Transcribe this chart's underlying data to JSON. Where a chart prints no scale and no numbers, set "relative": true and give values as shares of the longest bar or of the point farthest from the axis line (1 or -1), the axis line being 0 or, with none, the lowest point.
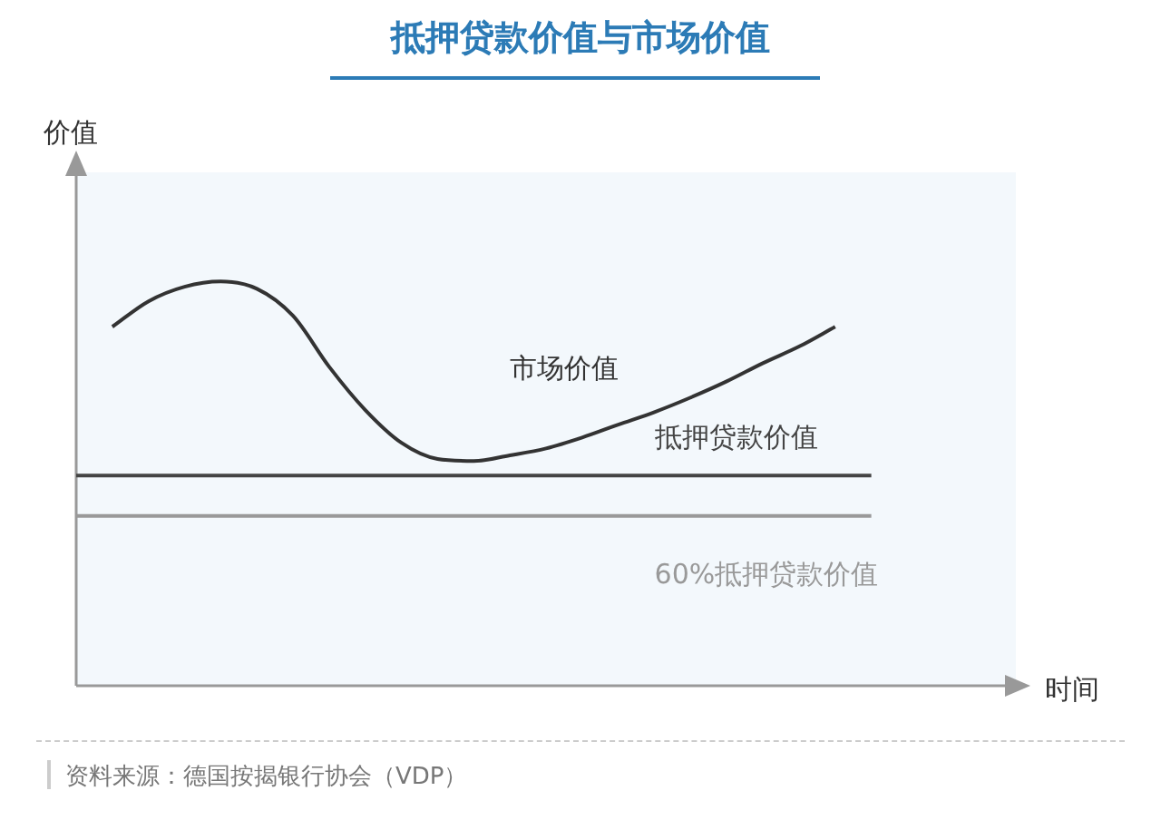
{
  "chart_data": {
    "type": "line",
    "title": "抵押贷款价值与市场价值",
    "xlabel": "时间",
    "ylabel": "价值",
    "relative": true,
    "legend": false,
    "marker": "none",
    "categories": [
      null,
      null,
      null,
      null,
      null,
      null,
      null,
      null,
      null,
      null,
      null,
      null,
      null,
      null,
      null,
      null,
      null,
      null,
      null,
      null,
      null,
      null,
      null,
      null,
      null,
      null,
      null
    ],
    "series": [
      {
        "name": "市场价值",
        "color": "#333333",
        "values": [
          null,
          0.888,
          0.951,
          0.987,
          1,
          0.982,
          0.915,
          0.789,
          0.682,
          0.601,
          0.561,
          0.556,
          0.57,
          0.587,
          0.614,
          0.646,
          0.677,
          0.713,
          0.753,
          0.798,
          0.839,
          0.888,
          null,
          null,
          null,
          null,
          null
        ]
      },
      {
        "name": "抵押贷款价值",
        "color": "#444444",
        "values": [
          0.52,
          0.52,
          0.52,
          0.52,
          0.52,
          0.52,
          0.52,
          0.52,
          0.52,
          0.52,
          0.52,
          0.52,
          0.52,
          0.52,
          0.52,
          0.52,
          0.52,
          0.52,
          0.52,
          0.52,
          0.52,
          0.52,
          0.52,
          null,
          null,
          null,
          null
        ]
      },
      {
        "name": "60%抵押贷款价值",
        "color": "#999999",
        "values": [
          0.42,
          0.42,
          0.42,
          0.42,
          0.42,
          0.42,
          0.42,
          0.42,
          0.42,
          0.42,
          0.42,
          0.42,
          0.42,
          0.42,
          0.42,
          0.42,
          0.42,
          0.42,
          0.42,
          0.42,
          0.42,
          0.42,
          0.42,
          null,
          null,
          null,
          null
        ]
      }
    ],
    "annotations": [
      "资料来源：德国按揭银行协会（VDP）"
    ]
  }
}
